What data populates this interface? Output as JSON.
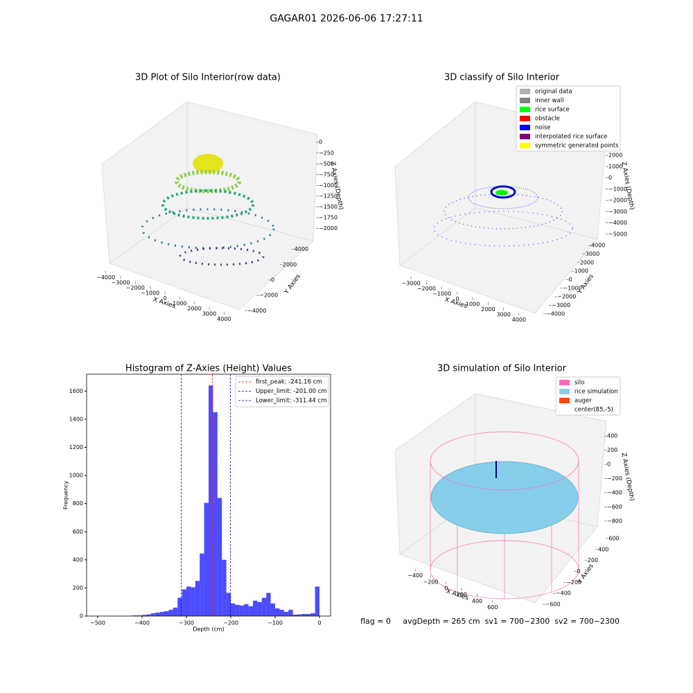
{
  "suptitle": "GAGAR01 2026-06-06 17:27:11",
  "chart_data": [
    {
      "type": "scatter3d",
      "title": "3D Plot of Silo Interior(row data)",
      "xlabel": "X Axies",
      "ylabel": "Y Axies",
      "zlabel": "Z Axies (Depth)",
      "xlim": [
        -4500,
        4500
      ],
      "ylim": [
        -4500,
        4500
      ],
      "zlim": [
        -2200,
        100
      ],
      "xticks": [
        {
          "value": -4000,
          "label": "−4000"
        },
        {
          "value": -3000,
          "label": "−3000"
        },
        {
          "value": -2000,
          "label": "−2000"
        },
        {
          "value": -1000,
          "label": "−1000"
        },
        0,
        1000,
        2000,
        3000,
        4000
      ],
      "yticks": [
        {
          "value": -4000,
          "label": "−4000"
        },
        {
          "value": -2000,
          "label": "−2000"
        },
        0,
        2000,
        4000
      ],
      "zticks": [
        {
          "value": -2000,
          "label": "−2000"
        },
        {
          "value": -1750,
          "label": "−1750"
        },
        {
          "value": -1500,
          "label": "−1500"
        },
        {
          "value": -1250,
          "label": "−1250"
        },
        {
          "value": -1000,
          "label": "−1000"
        },
        {
          "value": -750,
          "label": "−750"
        },
        {
          "value": -500,
          "label": "−500"
        },
        {
          "value": -250,
          "label": "−250"
        },
        0
      ]
    },
    {
      "type": "scatter3d",
      "title": "3D classify of Silo Interior",
      "xlabel": "X Axies",
      "ylabel": "Y Axies",
      "zlabel": "Z Axies (Depth)",
      "xlim": [
        -3500,
        4500
      ],
      "ylim": [
        -4500,
        4500
      ],
      "zlim": [
        -5500,
        2500
      ],
      "xticks": [
        {
          "value": -3000,
          "label": "−3000"
        },
        {
          "value": -2000,
          "label": "−2000"
        },
        {
          "value": -1000,
          "label": "−1000"
        },
        0,
        1000,
        2000,
        3000,
        4000
      ],
      "yticks": [
        {
          "value": -4000,
          "label": "−4000"
        },
        {
          "value": -3000,
          "label": "−3000"
        },
        {
          "value": -2000,
          "label": "−2000"
        },
        {
          "value": -1000,
          "label": "−1000"
        },
        0,
        1000,
        2000,
        3000,
        4000
      ],
      "zticks": [
        {
          "value": -5000,
          "label": "−5000"
        },
        {
          "value": -4000,
          "label": "−4000"
        },
        {
          "value": -3000,
          "label": "−3000"
        },
        {
          "value": -2000,
          "label": "−2000"
        },
        {
          "value": -1000,
          "label": "−1000"
        },
        0,
        1000,
        2000
      ],
      "legend": [
        {
          "name": "original data",
          "color": "#b0b0b0"
        },
        {
          "name": "inner wall",
          "color": "#808080"
        },
        {
          "name": "rice surface",
          "color": "#00ff00"
        },
        {
          "name": "obstacle",
          "color": "#ff0000"
        },
        {
          "name": "noise",
          "color": "#0000ff"
        },
        {
          "name": "interpolated rice surface",
          "color": "#800080"
        },
        {
          "name": "symmetric generated points",
          "color": "#ffff00"
        }
      ]
    },
    {
      "type": "surface3d",
      "title": "3D simulation of Silo Interior",
      "xlabel": "X Axies",
      "ylabel": "Y Axies",
      "zlabel": "Z Axies (Depth)",
      "xlim": [
        -500,
        700
      ],
      "ylim": [
        -700,
        700
      ],
      "zlim": [
        -900,
        500
      ],
      "xticks": [
        {
          "value": -400,
          "label": "−400"
        },
        {
          "value": -200,
          "label": "−200"
        },
        0,
        200,
        400,
        600
      ],
      "yticks": [
        {
          "value": -600,
          "label": "−600"
        },
        {
          "value": -400,
          "label": "−400"
        },
        {
          "value": -200,
          "label": "−200"
        },
        0,
        200,
        400,
        600
      ],
      "zticks": [
        {
          "value": -800,
          "label": "−800"
        },
        {
          "value": -600,
          "label": "−600"
        },
        {
          "value": -400,
          "label": "−400"
        },
        {
          "value": -200,
          "label": "−200"
        },
        0,
        200,
        400
      ],
      "legend": [
        {
          "name": "silo",
          "color": "#ff69b4"
        },
        {
          "name": "rice simulation",
          "color": "#87ceeb"
        },
        {
          "name": "auger",
          "color": "#ff4500"
        },
        {
          "name": "center(85,-5)",
          "color": "#ffffff"
        }
      ],
      "annotation": "flag = 0     avgDepth = 265 cm  sv1 = 700~2300  sv2 = 700~2300"
    },
    {
      "type": "histogram",
      "title": "Histogram of Z-Axies (Height) Values",
      "xlabel": "Depth (cm)",
      "ylabel": "Frequency",
      "color": "#0000ff",
      "bins": [
        -430,
        -420,
        -410,
        -400,
        -390,
        -380,
        -370,
        -360,
        -350,
        -340,
        -330,
        -320,
        -310,
        -300,
        -290,
        -280,
        -270,
        -260,
        -250,
        -240,
        -230,
        -220,
        -210,
        -200,
        -190,
        -180,
        -170,
        -160,
        -150,
        -140,
        -130,
        -120,
        -110,
        -100,
        -90,
        -80,
        -70,
        -60,
        -50,
        -40,
        -30,
        -20,
        -10,
        0
      ],
      "counts": [
        3,
        5,
        5,
        8,
        12,
        20,
        25,
        30,
        35,
        45,
        60,
        130,
        190,
        210,
        205,
        250,
        445,
        805,
        1640,
        1450,
        840,
        400,
        165,
        90,
        80,
        75,
        85,
        70,
        110,
        100,
        130,
        165,
        90,
        55,
        45,
        30,
        45,
        10,
        12,
        15,
        15,
        20,
        210
      ],
      "xlim": [
        -525,
        25
      ],
      "ylim": [
        0,
        1720
      ],
      "xticks": [
        {
          "value": -500,
          "label": "−500"
        },
        {
          "value": -400,
          "label": "−400"
        },
        {
          "value": -300,
          "label": "−300"
        },
        {
          "value": -200,
          "label": "−200"
        },
        {
          "value": -100,
          "label": "−100"
        },
        0
      ],
      "yticks": [
        0,
        200,
        400,
        600,
        800,
        1000,
        1200,
        1400,
        1600
      ],
      "lines": [
        {
          "name": "first_peak: -241.16 cm",
          "value": -241.16,
          "color": "#ff0000"
        },
        {
          "name": "Upper_limit: -201.00 cm",
          "value": -201.0,
          "color": "#0000aa"
        },
        {
          "name": "Lower_limit: -311.44 cm",
          "value": -311.44,
          "color": "#0000aa"
        }
      ]
    }
  ]
}
